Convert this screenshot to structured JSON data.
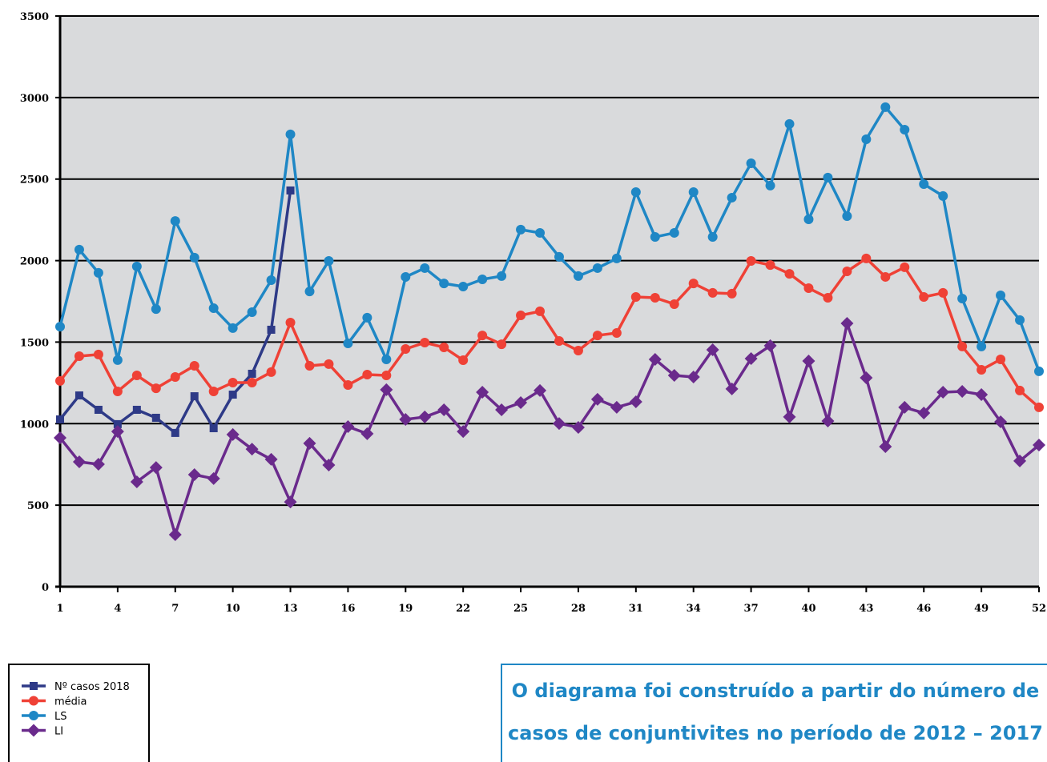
{
  "chart_data": {
    "type": "line",
    "x": [
      1,
      2,
      3,
      4,
      5,
      6,
      7,
      8,
      9,
      10,
      11,
      12,
      13,
      14,
      15,
      16,
      17,
      18,
      19,
      20,
      21,
      22,
      23,
      24,
      25,
      26,
      27,
      28,
      29,
      30,
      31,
      32,
      33,
      34,
      35,
      36,
      37,
      38,
      39,
      40,
      41,
      42,
      43,
      44,
      45,
      46,
      47,
      48,
      49,
      50,
      51,
      52
    ],
    "xlim": [
      1,
      52
    ],
    "xticks": [
      1,
      4,
      7,
      10,
      13,
      16,
      19,
      22,
      25,
      28,
      31,
      34,
      37,
      40,
      43,
      46,
      49,
      52
    ],
    "ylim": [
      0,
      3500
    ],
    "yticks": [
      0,
      500,
      1000,
      1500,
      2000,
      2500,
      3000,
      3500
    ],
    "grid": true,
    "series": [
      {
        "name": "Nº casos 2018",
        "color": "#2e3a87",
        "marker": "square",
        "values": [
          1026,
          1173,
          1085,
          997,
          1085,
          1036,
          943,
          1168,
          972,
          1178,
          1306,
          1576,
          2430,
          null,
          null,
          null,
          null,
          null,
          null,
          null,
          null,
          null,
          null,
          null,
          null,
          null,
          null,
          null,
          null,
          null,
          null,
          null,
          null,
          null,
          null,
          null,
          null,
          null,
          null,
          null,
          null,
          null,
          null,
          null,
          null,
          null,
          null,
          null,
          null,
          null,
          null,
          null
        ]
      },
      {
        "name": "média",
        "color": "#ef4136",
        "marker": "circle",
        "values": [
          1262,
          1414,
          1424,
          1198,
          1296,
          1217,
          1286,
          1355,
          1198,
          1252,
          1252,
          1316,
          1620,
          1355,
          1365,
          1237,
          1301,
          1296,
          1458,
          1497,
          1468,
          1389,
          1541,
          1487,
          1664,
          1689,
          1507,
          1448,
          1541,
          1556,
          1777,
          1772,
          1733,
          1860,
          1802,
          1797,
          1998,
          1973,
          1919,
          1831,
          1772,
          1934,
          2013,
          1900,
          1959,
          1777,
          1802,
          1473,
          1330,
          1394,
          1203,
          1100
        ]
      },
      {
        "name": "LS",
        "color": "#1f87c5",
        "marker": "circle",
        "values": [
          1595,
          2067,
          1925,
          1390,
          1964,
          1703,
          2243,
          2018,
          1708,
          1586,
          1684,
          1880,
          2774,
          1811,
          1998,
          1492,
          1650,
          1394,
          1900,
          1954,
          1860,
          1841,
          1885,
          1905,
          2190,
          2170,
          2023,
          1905,
          1954,
          2013,
          2420,
          2145,
          2170,
          2420,
          2145,
          2386,
          2597,
          2460,
          2838,
          2253,
          2509,
          2273,
          2744,
          2941,
          2803,
          2469,
          2396,
          1767,
          1473,
          1787,
          1635,
          1321
        ]
      },
      {
        "name": "LI",
        "color": "#6a2a8c",
        "marker": "diamond",
        "values": [
          913,
          766,
          751,
          952,
          643,
          731,
          319,
          687,
          663,
          933,
          844,
          781,
          520,
          879,
          746,
          982,
          938,
          1208,
          1026,
          1041,
          1085,
          952,
          1193,
          1085,
          1129,
          1203,
          1001,
          977,
          1149,
          1100,
          1134,
          1394,
          1296,
          1286,
          1453,
          1213,
          1399,
          1478,
          1041,
          1384,
          1016,
          1615,
          1281,
          859,
          1100,
          1065,
          1193,
          1198,
          1178,
          1011,
          771,
          869
        ]
      }
    ],
    "annotation": [
      "O diagrama foi construído a partir do número de",
      "casos de conjuntivites no período de 2012 – 2017"
    ]
  }
}
